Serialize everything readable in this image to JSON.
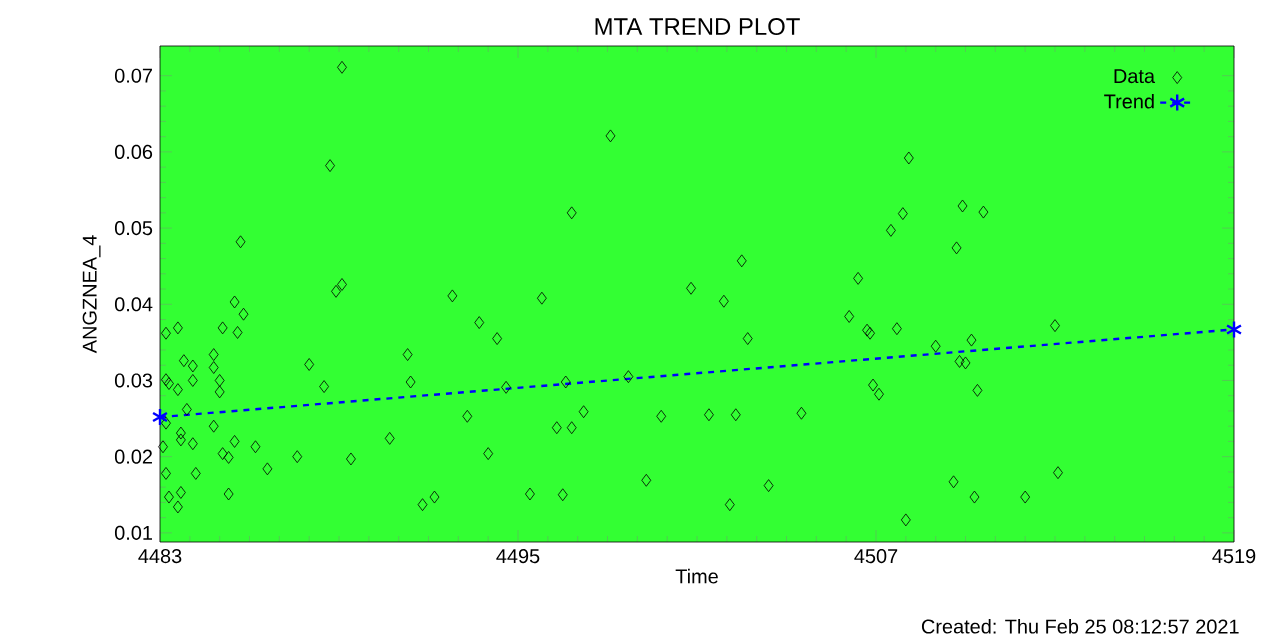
{
  "chart_data": {
    "type": "scatter",
    "title": "MTA TREND PLOT",
    "xlabel": "Time",
    "ylabel": "ANGZNEA_4",
    "annotations": [
      "Created: Thu Feb 25 08:12:57 2021"
    ],
    "xlim": [
      4483,
      4519
    ],
    "xticks": [
      4483,
      4495,
      4507,
      4519
    ],
    "ylim": [
      0.0088,
      0.0739
    ],
    "yticks": [
      0.01,
      0.02,
      0.03,
      0.04,
      0.05,
      0.06,
      0.07
    ],
    "legend": "top right",
    "series": [
      {
        "name": "Data",
        "marker": "diamond",
        "color": "#000000",
        "x": [
          4489.1,
          4488.7,
          4485.7,
          4488.9,
          4489.1,
          4485.5,
          4485.8,
          4483.6,
          4483.2,
          4485.1,
          4485.6,
          4492.8,
          4493.7,
          4494.3,
          4495.8,
          4491.3,
          4491.4,
          4494.6,
          4488.0,
          4488.5,
          4484.8,
          4483.8,
          4484.1,
          4484.8,
          4484.1,
          4483.2,
          4483.3,
          4485.0,
          4485.0,
          4483.6,
          4483.9,
          4484.8,
          4483.2,
          4483.7,
          4483.7,
          4484.1,
          4483.1,
          4485.5,
          4486.2,
          4490.7,
          4493.3,
          4485.1,
          4485.3,
          4487.6,
          4489.4,
          4494.0,
          4486.6,
          4484.2,
          4483.2,
          4483.7,
          4483.3,
          4483.6,
          4485.3,
          4491.8,
          4492.2,
          4495.4,
          4498.1,
          4496.8,
          4500.8,
          4501.9,
          4502.5,
          4502.7,
          4508.1,
          4507.9,
          4507.5,
          4506.4,
          4506.1,
          4506.7,
          4506.8,
          4507.7,
          4498.7,
          4496.6,
          4506.9,
          4507.1,
          4496.3,
          4496.8,
          4497.2,
          4499.8,
          4501.4,
          4502.3,
          4504.5,
          4496.5,
          4499.3,
          4502.1,
          4503.4,
          4508.0,
          4509.9,
          4510.6,
          4509.7,
          4509.0,
          4510.2,
          4509.8,
          4510.0,
          4513.0,
          4510.4,
          4509.6,
          4510.3,
          4512.0,
          4513.1
        ],
        "values": [
          0.0711,
          0.0582,
          0.0482,
          0.0417,
          0.0426,
          0.0403,
          0.0387,
          0.0369,
          0.0362,
          0.0369,
          0.0363,
          0.0411,
          0.0376,
          0.0355,
          0.0408,
          0.0334,
          0.0298,
          0.0291,
          0.0321,
          0.0292,
          0.0334,
          0.0326,
          0.0319,
          0.0317,
          0.03,
          0.0301,
          0.0296,
          0.03,
          0.0285,
          0.0288,
          0.0262,
          0.024,
          0.0244,
          0.0231,
          0.0222,
          0.0217,
          0.0213,
          0.022,
          0.0213,
          0.0224,
          0.0253,
          0.0204,
          0.0199,
          0.02,
          0.0197,
          0.0204,
          0.0184,
          0.0178,
          0.0178,
          0.0153,
          0.0147,
          0.0134,
          0.0151,
          0.0137,
          0.0147,
          0.0151,
          0.0621,
          0.052,
          0.0421,
          0.0404,
          0.0457,
          0.0355,
          0.0592,
          0.0519,
          0.0497,
          0.0434,
          0.0384,
          0.0366,
          0.0362,
          0.0368,
          0.0305,
          0.0298,
          0.0294,
          0.0282,
          0.0238,
          0.0238,
          0.0259,
          0.0253,
          0.0255,
          0.0255,
          0.0257,
          0.015,
          0.0169,
          0.0137,
          0.0162,
          0.0117,
          0.0529,
          0.0521,
          0.0474,
          0.0345,
          0.0353,
          0.0325,
          0.0323,
          0.0372,
          0.0287,
          0.0167,
          0.0147,
          0.0147,
          0.0179
        ]
      },
      {
        "name": "Trend",
        "type": "line",
        "marker": "cross",
        "line_style": "dashed",
        "color": "#0000ff",
        "x": [
          4483,
          4519
        ],
        "values": [
          0.0252,
          0.0367
        ]
      }
    ]
  }
}
